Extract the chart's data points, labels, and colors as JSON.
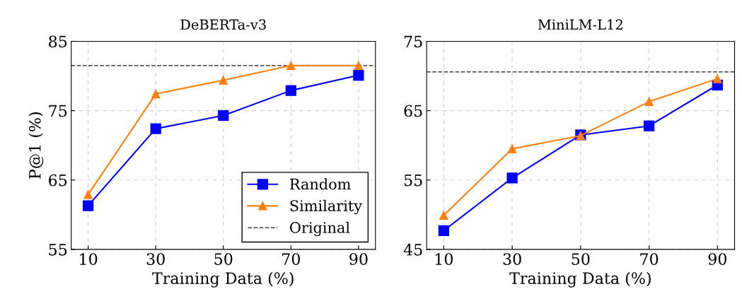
{
  "chart_data": [
    {
      "type": "line",
      "title": "DeBERTa-v3",
      "xlabel": "Training Data (%)",
      "ylabel": "P@1 (%)",
      "x": [
        10,
        30,
        50,
        70,
        90
      ],
      "xlim": [
        5,
        95
      ],
      "xticks": [
        10,
        30,
        50,
        70,
        90
      ],
      "ylim": [
        55,
        85
      ],
      "yticks": [
        55,
        65,
        75,
        85
      ],
      "grid": true,
      "legend": "bottom right",
      "line_style": "solid",
      "series": [
        {
          "name": "Random",
          "color": "#0000ff",
          "marker": "square",
          "values": [
            61.3,
            72.4,
            74.3,
            77.9,
            80.1
          ]
        },
        {
          "name": "Similarity",
          "color": "#ff7f0e",
          "marker": "triangle",
          "values": [
            62.9,
            77.4,
            79.4,
            81.5,
            81.5
          ]
        }
      ],
      "ref_lines": [
        {
          "axis": "y",
          "value": 81.5,
          "label": "Original",
          "color": "#404040",
          "line_style": "dashed"
        }
      ]
    },
    {
      "type": "line",
      "title": "MiniLM-L12",
      "xlabel": "Training Data (%)",
      "x": [
        10,
        30,
        50,
        70,
        90
      ],
      "xlim": [
        5,
        95
      ],
      "xticks": [
        10,
        30,
        50,
        70,
        90
      ],
      "ylim": [
        45,
        75
      ],
      "yticks": [
        45,
        55,
        65,
        75
      ],
      "grid": true,
      "line_style": "solid",
      "series": [
        {
          "color": "#0000ff",
          "marker": "square",
          "values": [
            47.7,
            55.3,
            61.5,
            62.8,
            68.7
          ]
        },
        {
          "color": "#ff7f0e",
          "marker": "triangle",
          "values": [
            49.9,
            59.5,
            61.4,
            66.3,
            69.6
          ]
        }
      ],
      "ref_lines": [
        {
          "axis": "y",
          "value": 70.6,
          "color": "#404040",
          "line_style": "dashed"
        }
      ]
    }
  ]
}
